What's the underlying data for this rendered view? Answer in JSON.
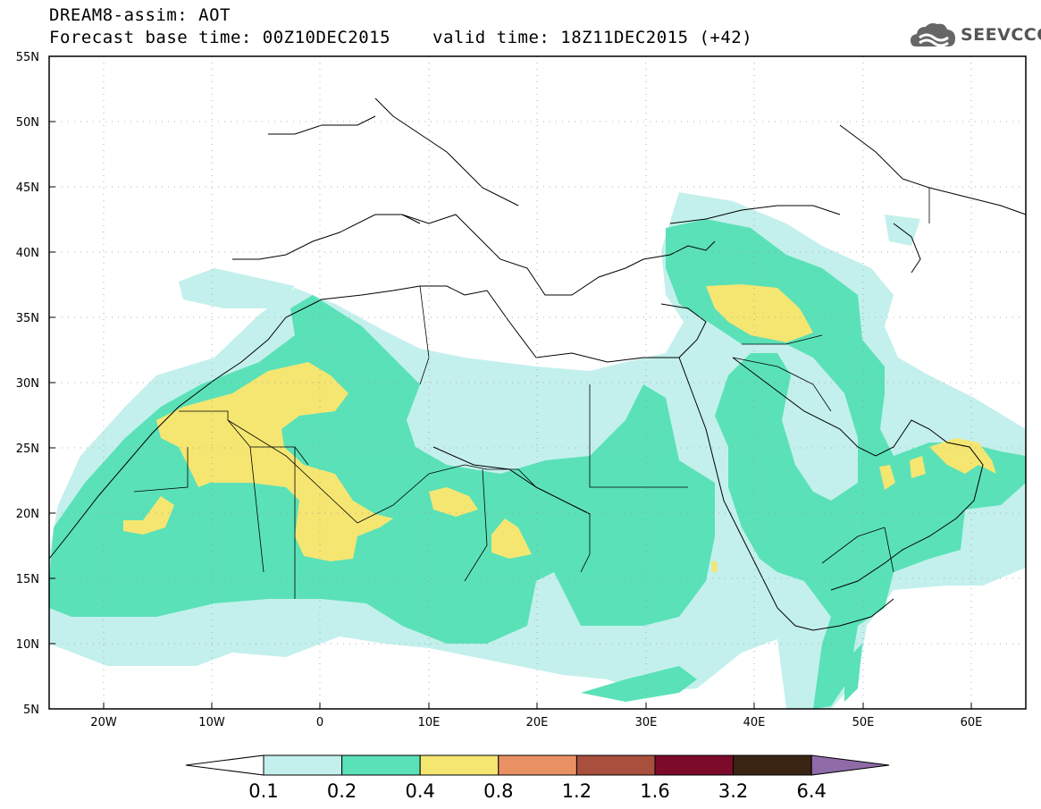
{
  "title": {
    "line1": "DREAM8-assim: AOT",
    "line2": "Forecast base time: 00Z10DEC2015",
    "valid": "valid time: 18Z11DEC2015 (+42)"
  },
  "logo": {
    "text": "SEEVCCC",
    "icon": "cloud-icon"
  },
  "axes": {
    "lon_range": [
      -25,
      65
    ],
    "lat_range": [
      5,
      55
    ],
    "lon_labels": [
      "20W",
      "10W",
      "0",
      "10E",
      "20E",
      "30E",
      "40E",
      "50E",
      "60E"
    ],
    "lat_labels": [
      "55N",
      "50N",
      "45N",
      "40N",
      "35N",
      "30N",
      "25N",
      "20N",
      "15N",
      "10N",
      "5N"
    ]
  },
  "colorbar": {
    "levels": [
      "0.1",
      "0.2",
      "0.4",
      "0.8",
      "1.2",
      "1.6",
      "3.2",
      "6.4"
    ],
    "colors": [
      "#ffffff",
      "#c3f0ec",
      "#5ae1b8",
      "#f5e672",
      "#ea9164",
      "#a84f3d",
      "#7b0a2b",
      "#3a2414",
      "#8f6ba8"
    ]
  }
}
